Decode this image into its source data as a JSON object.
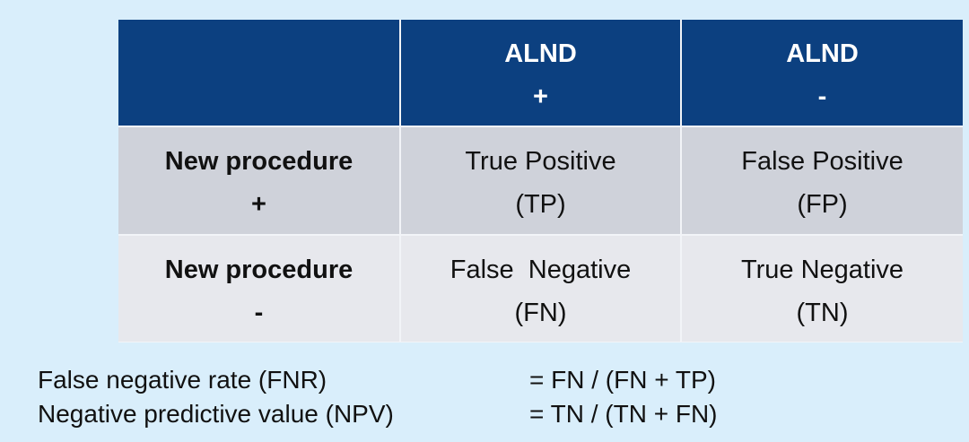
{
  "table": {
    "header": [
      {
        "line1": "",
        "line2": ""
      },
      {
        "line1": "ALND",
        "line2": "+"
      },
      {
        "line1": "ALND",
        "line2": "-"
      }
    ],
    "rows": [
      {
        "label": {
          "line1": "New procedure",
          "line2": "+"
        },
        "cells": [
          {
            "line1": "True Positive",
            "line2": "(TP)"
          },
          {
            "line1": "False Positive",
            "line2": "(FP)"
          }
        ]
      },
      {
        "label": {
          "line1": "New procedure",
          "line2": "-"
        },
        "cells": [
          {
            "line1": "False  Negative",
            "line2": "(FN)"
          },
          {
            "line1": "True Negative",
            "line2": "(TN)"
          }
        ]
      }
    ]
  },
  "formulas": [
    {
      "label": "False negative rate (FNR)",
      "expr": "= FN / (FN + TP)"
    },
    {
      "label": "Negative predictive value (NPV)",
      "expr": "= TN / (TN + FN)"
    }
  ],
  "colors": {
    "background": "#d9eefb",
    "header": "#0c4080",
    "row1": "#cfd2da",
    "row2": "#e7e8ed"
  }
}
